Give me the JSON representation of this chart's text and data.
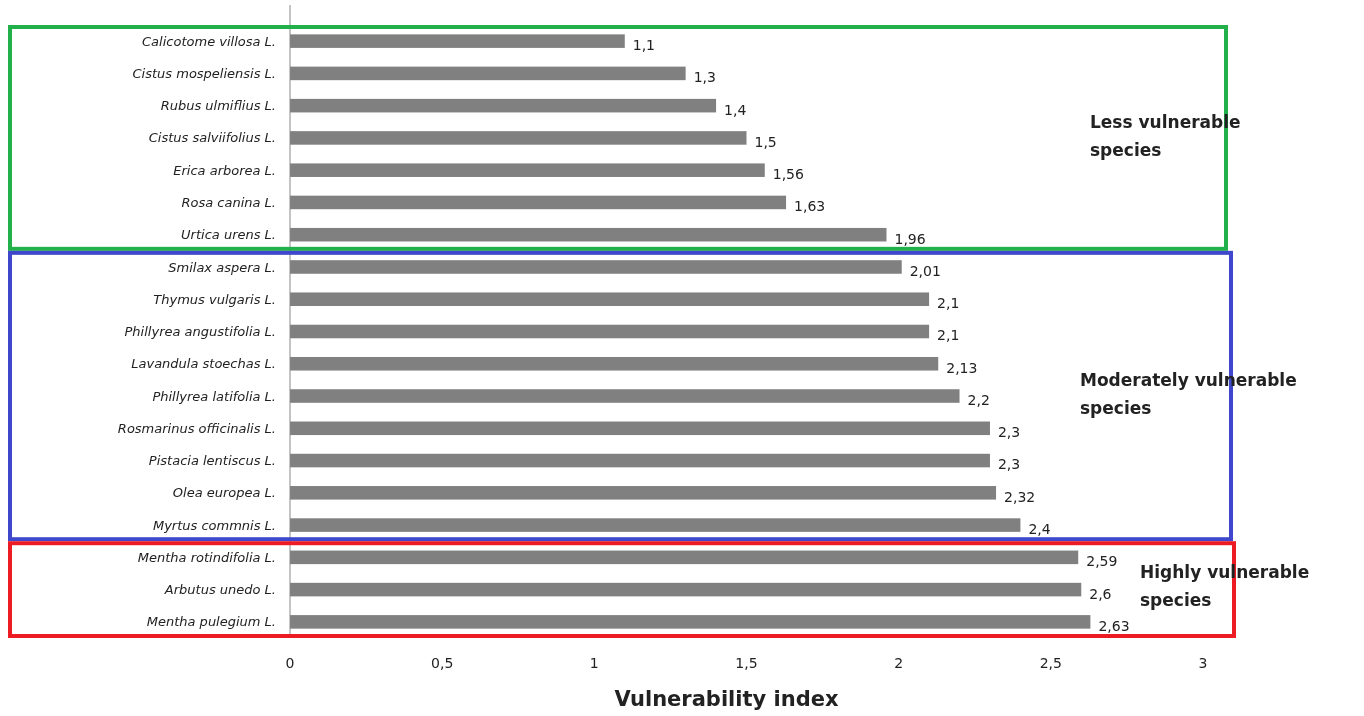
{
  "chart_data": {
    "type": "bar",
    "orientation": "horizontal",
    "xlabel": "Vulnerability index",
    "categories": [
      "Calicotome villosa L.",
      "Cistus mospeliensis L.",
      "Rubus ulmiflius L.",
      "Cistus salviifolius L.",
      "Erica arborea L.",
      "Rosa canina L.",
      "Urtica urens L.",
      "Smilax aspera L.",
      "Thymus vulgaris L.",
      "Phillyrea angustifolia L.",
      "Lavandula stoechas L.",
      "Phillyrea latifolia L.",
      "Rosmarinus officinalis L.",
      "Pistacia lentiscus L.",
      "Olea europea L.",
      "Myrtus commnis L.",
      "Mentha rotindifolia L.",
      "Arbutus unedo L.",
      "Mentha pulegium L."
    ],
    "values": [
      1.1,
      1.3,
      1.4,
      1.5,
      1.56,
      1.63,
      1.96,
      2.01,
      2.1,
      2.1,
      2.13,
      2.2,
      2.3,
      2.3,
      2.32,
      2.4,
      2.59,
      2.6,
      2.63
    ],
    "value_labels": [
      "1,1",
      "1,3",
      "1,4",
      "1,5",
      "1,56",
      "1,63",
      "1,96",
      "2,01",
      "2,1",
      "2,1",
      "2,13",
      "2,2",
      "2,3",
      "2,3",
      "2,32",
      "2,4",
      "2,59",
      "2,6",
      "2,63"
    ],
    "color": "#808080",
    "xlim": [
      0,
      3
    ],
    "xticks": [
      0,
      {
        "value": 0.5,
        "label": "0,5"
      },
      1,
      {
        "value": 1.5,
        "label": "1,5"
      },
      2,
      {
        "value": 2.5,
        "label": "2,5"
      },
      3
    ],
    "annotations": [
      "Less vulnerable species",
      "Moderately vulnerable species",
      "Highly vulnerable species"
    ],
    "grid": false
  }
}
